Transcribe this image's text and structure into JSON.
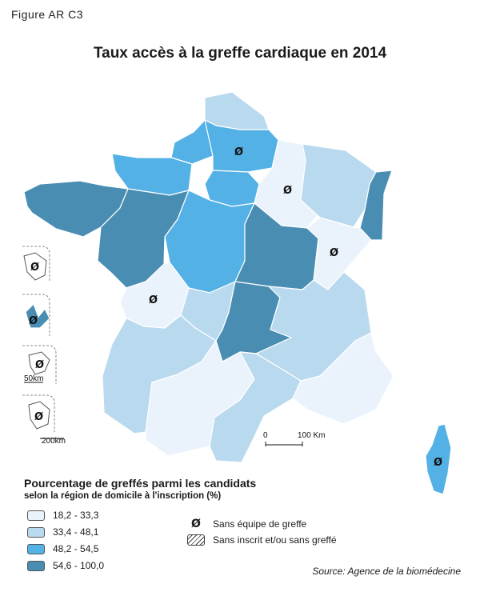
{
  "figure_label": "Figure AR C3",
  "title": "Taux accès à la greffe cardiaque en 2014",
  "colors": {
    "class1": "#eaf3fb",
    "class2": "#b9d9ef",
    "class3": "#54b1e6",
    "class4": "#4a8db2"
  },
  "map_symbol": "Ø",
  "scale_bar": {
    "zero": "0",
    "label": "100 Km"
  },
  "overseas_scales": {
    "guyane": "50km",
    "reunion": "200km"
  },
  "legend": {
    "title": "Pourcentage de greffés parmi les candidats",
    "subtitle": "selon la région de domicile à l'inscription (%)",
    "classes": [
      {
        "label": "18,2 - 33,3",
        "color": "#eaf3fb"
      },
      {
        "label": "33,4 - 48,1",
        "color": "#b9d9ef"
      },
      {
        "label": "48,2 - 54,5",
        "color": "#54b1e6"
      },
      {
        "label": "54,6 - 100,0",
        "color": "#4a8db2"
      }
    ],
    "symbols": [
      {
        "glyph": "Ø",
        "label": "Sans équipe de greffe"
      },
      {
        "label": "Sans inscrit et/ou sans greffé"
      }
    ]
  },
  "source": "Source: Agence de la biomédecine"
}
